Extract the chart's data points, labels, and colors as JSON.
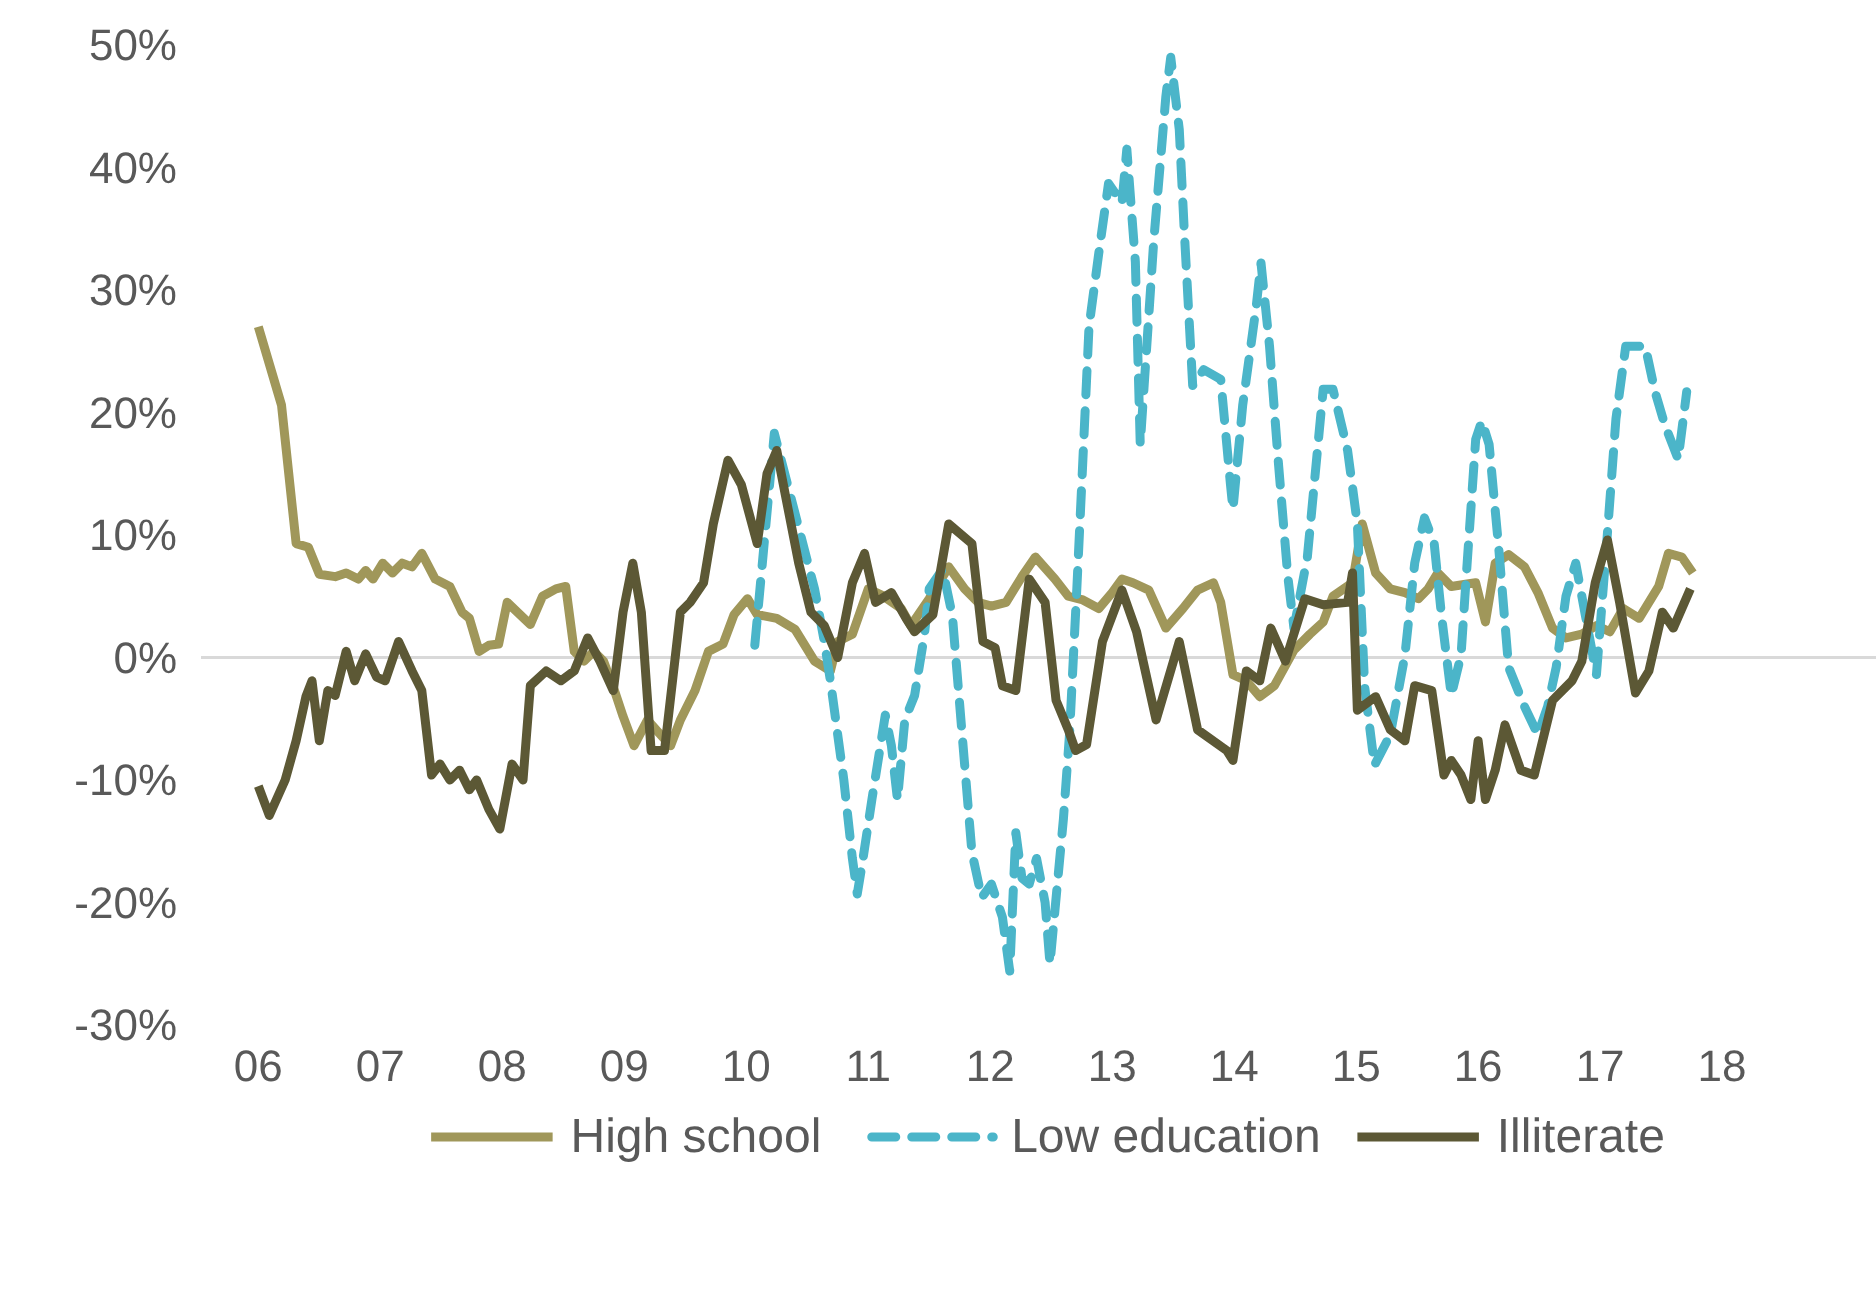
{
  "chart_data": {
    "type": "line",
    "legend": "bottom",
    "grid": false,
    "marker": "none",
    "xlim": [
      2005.53,
      2019.27
    ],
    "xticks": [
      {
        "value": 2006,
        "label": "06"
      },
      {
        "value": 2007,
        "label": "07"
      },
      {
        "value": 2008,
        "label": "08"
      },
      {
        "value": 2009,
        "label": "09"
      },
      {
        "value": 2010,
        "label": "10"
      },
      {
        "value": 2011,
        "label": "11"
      },
      {
        "value": 2012,
        "label": "12"
      },
      {
        "value": 2013,
        "label": "13"
      },
      {
        "value": 2014,
        "label": "14"
      },
      {
        "value": 2015,
        "label": "15"
      },
      {
        "value": 2016,
        "label": "16"
      },
      {
        "value": 2017,
        "label": "17"
      },
      {
        "value": 2018,
        "label": "18"
      }
    ],
    "ylim": [
      -30,
      50
    ],
    "yticks": [
      {
        "value": -30,
        "label": "-30%"
      },
      {
        "value": -20,
        "label": "-20%"
      },
      {
        "value": -10,
        "label": "-10%"
      },
      {
        "value": 0,
        "label": "0%"
      },
      {
        "value": 10,
        "label": "10%"
      },
      {
        "value": 20,
        "label": "20%"
      },
      {
        "value": 30,
        "label": "30%"
      },
      {
        "value": 40,
        "label": "40%"
      },
      {
        "value": 50,
        "label": "50%"
      }
    ],
    "ref_lines": [
      {
        "axis": "y",
        "value": 0,
        "color": "#d9d9d9"
      }
    ],
    "series": [
      {
        "name": "High school",
        "color": "#a0975a",
        "line_style": "solid",
        "x": [
          2006.0,
          2006.19,
          2006.31,
          2006.41,
          2006.5,
          2006.63,
          2006.72,
          2006.82,
          2006.88,
          2006.94,
          2007.02,
          2007.1,
          2007.18,
          2007.26,
          2007.34,
          2007.45,
          2007.57,
          2007.67,
          2007.73,
          2007.81,
          2007.89,
          2007.97,
          2008.04,
          2008.23,
          2008.33,
          2008.44,
          2008.52,
          2008.59,
          2008.67,
          2008.75,
          2008.83,
          2008.92,
          2008.99,
          2009.08,
          2009.19,
          2009.27,
          2009.38,
          2009.46,
          2009.58,
          2009.69,
          2009.81,
          2009.9,
          2010.01,
          2010.09,
          2010.25,
          2010.4,
          2010.56,
          2010.69,
          2010.75,
          2010.87,
          2011.0,
          2011.11,
          2011.27,
          2011.35,
          2011.5,
          2011.66,
          2011.79,
          2011.9,
          2012.01,
          2012.13,
          2012.26,
          2012.37,
          2012.53,
          2012.64,
          2012.76,
          2012.89,
          2013.0,
          2013.08,
          2013.17,
          2013.3,
          2013.44,
          2013.58,
          2013.7,
          2013.83,
          2013.89,
          2013.99,
          2014.1,
          2014.21,
          2014.33,
          2014.49,
          2014.62,
          2014.73,
          2014.81,
          2014.97,
          2015.05,
          2015.16,
          2015.28,
          2015.4,
          2015.51,
          2015.59,
          2015.67,
          2015.78,
          2015.91,
          2015.98,
          2016.06,
          2016.14,
          2016.25,
          2016.38,
          2016.49,
          2016.61,
          2016.72,
          2016.85,
          2016.97,
          2017.08,
          2017.19,
          2017.32,
          2017.48,
          2017.56,
          2017.67,
          2017.76
        ],
        "values": [
          27,
          20.6,
          9.3,
          9,
          6.8,
          6.6,
          6.9,
          6.4,
          7.1,
          6.4,
          7.7,
          6.9,
          7.7,
          7.4,
          8.5,
          6.4,
          5.8,
          3.7,
          3.2,
          0.5,
          1,
          1.1,
          4.5,
          2.7,
          5,
          5.6,
          5.8,
          0.5,
          -0.3,
          0.5,
          -0.3,
          -2.7,
          -4.8,
          -7.2,
          -5.1,
          -6,
          -7.2,
          -5.1,
          -2.7,
          0.5,
          1.1,
          3.5,
          4.8,
          3.5,
          3.2,
          2.3,
          -0.3,
          -1.1,
          1.3,
          1.9,
          5.6,
          5.1,
          4,
          2.6,
          4.8,
          7.4,
          5.6,
          4.5,
          4.2,
          4.5,
          6.6,
          8.2,
          6.4,
          5,
          4.7,
          4,
          5.3,
          6.4,
          6.1,
          5.5,
          2.4,
          4,
          5.5,
          6.1,
          4.5,
          -1.4,
          -1.9,
          -3.2,
          -2.3,
          0.6,
          1.9,
          2.9,
          5,
          6.1,
          10.9,
          6.9,
          5.6,
          5.3,
          4.8,
          5.6,
          6.9,
          5.8,
          6,
          6.1,
          2.9,
          7.7,
          8.4,
          7.4,
          5.3,
          2.4,
          1.6,
          1.9,
          2.6,
          2.1,
          4,
          3.2,
          5.8,
          8.5,
          8.2,
          6.9
        ]
      },
      {
        "name": "Low education",
        "color": "#4bb5c9",
        "line_style": "dashed",
        "x": [
          2010.07,
          2010.23,
          2010.56,
          2010.64,
          2010.69,
          2010.8,
          2010.87,
          2010.91,
          2010.95,
          2011.03,
          2011.14,
          2011.19,
          2011.24,
          2011.3,
          2011.38,
          2011.46,
          2011.5,
          2011.61,
          2011.69,
          2011.77,
          2011.85,
          2011.93,
          2012.01,
          2012.1,
          2012.16,
          2012.21,
          2012.26,
          2012.32,
          2012.38,
          2012.45,
          2012.49,
          2012.6,
          2012.65,
          2012.71,
          2012.76,
          2012.81,
          2012.89,
          2012.97,
          2013.08,
          2013.12,
          2013.19,
          2013.23,
          2013.34,
          2013.44,
          2013.48,
          2013.55,
          2013.59,
          2013.66,
          2013.75,
          2013.89,
          2013.97,
          2013.99,
          2014.07,
          2014.18,
          2014.22,
          2014.29,
          2014.36,
          2014.44,
          2014.49,
          2014.6,
          2014.73,
          2014.81,
          2014.93,
          2015.01,
          2015.07,
          2015.15,
          2015.28,
          2015.4,
          2015.48,
          2015.56,
          2015.64,
          2015.7,
          2015.78,
          2015.86,
          2015.91,
          2015.98,
          2016.03,
          2016.09,
          2016.17,
          2016.25,
          2016.38,
          2016.49,
          2016.57,
          2016.64,
          2016.72,
          2016.8,
          2016.88,
          2016.97,
          2017.05,
          2017.13,
          2017.21,
          2017.29,
          2017.37,
          2017.45,
          2017.53,
          2017.64,
          2017.71
        ],
        "values": [
          1,
          18.3,
          5.6,
          1.3,
          -1.9,
          -10,
          -16.4,
          -19.3,
          -16.9,
          -11.6,
          -4.7,
          -7.2,
          -11.6,
          -5.1,
          -3.1,
          1.8,
          5.6,
          7.2,
          3.4,
          -6.3,
          -15.9,
          -19.6,
          -18.5,
          -21.2,
          -25.6,
          -14.3,
          -18,
          -18.5,
          -16.4,
          -20,
          -25,
          -13.2,
          -6.3,
          5.6,
          16.2,
          27,
          33,
          38.7,
          37.1,
          41.5,
          32.3,
          17.4,
          33.9,
          45.8,
          49,
          43.1,
          35,
          22.2,
          23.5,
          22.7,
          14.1,
          12.1,
          20.6,
          28.6,
          32.2,
          25.4,
          16.2,
          6.6,
          2.4,
          8.2,
          21.9,
          21.9,
          16.9,
          10.9,
          -2.4,
          -8.8,
          -6.3,
          0.2,
          7.7,
          11.4,
          9.3,
          3.4,
          -3.1,
          0.2,
          7.7,
          17.8,
          19.3,
          17.4,
          8.8,
          -0.8,
          -4,
          -6.3,
          -4,
          -0.8,
          5,
          7.7,
          3.4,
          -1.4,
          8.8,
          19.5,
          25.4,
          25.4,
          25.4,
          21.7,
          19,
          16.2,
          21.7
        ]
      },
      {
        "name": "Illiterate",
        "color": "#5c5835",
        "line_style": "solid",
        "x": [
          2006.0,
          2006.09,
          2006.22,
          2006.31,
          2006.39,
          2006.44,
          2006.5,
          2006.57,
          2006.63,
          2006.72,
          2006.79,
          2006.88,
          2006.97,
          2007.04,
          2007.15,
          2007.26,
          2007.34,
          2007.42,
          2007.49,
          2007.57,
          2007.65,
          2007.73,
          2007.79,
          2007.89,
          2007.98,
          2008.08,
          2008.17,
          2008.23,
          2008.36,
          2008.48,
          2008.59,
          2008.7,
          2008.8,
          2008.91,
          2008.99,
          2009.07,
          2009.14,
          2009.22,
          2009.33,
          2009.46,
          2009.54,
          2009.65,
          2009.73,
          2009.85,
          2009.96,
          2010.09,
          2010.17,
          2010.25,
          2010.32,
          2010.43,
          2010.53,
          2010.64,
          2010.75,
          2010.87,
          2010.97,
          2011.06,
          2011.19,
          2011.31,
          2011.38,
          2011.53,
          2011.66,
          2011.85,
          2011.94,
          2012.04,
          2012.1,
          2012.21,
          2012.32,
          2012.45,
          2012.54,
          2012.64,
          2012.7,
          2012.79,
          2012.92,
          2013.08,
          2013.2,
          2013.36,
          2013.55,
          2013.7,
          2013.94,
          2013.99,
          2014.1,
          2014.21,
          2014.3,
          2014.42,
          2014.58,
          2014.73,
          2014.93,
          2014.97,
          2015.01,
          2015.16,
          2015.28,
          2015.4,
          2015.48,
          2015.62,
          2015.72,
          2015.78,
          2015.86,
          2015.94,
          2016.0,
          2016.06,
          2016.14,
          2016.22,
          2016.35,
          2016.46,
          2016.61,
          2016.77,
          2016.85,
          2016.96,
          2017.06,
          2017.16,
          2017.29,
          2017.4,
          2017.51,
          2017.6,
          2017.74
        ],
        "values": [
          -10.5,
          -12.9,
          -10,
          -6.8,
          -3.2,
          -1.9,
          -6.8,
          -2.7,
          -3.1,
          0.5,
          -1.9,
          0.3,
          -1.6,
          -1.9,
          1.3,
          -1.1,
          -2.7,
          -9.6,
          -8.7,
          -10,
          -9.2,
          -10.8,
          -10,
          -12.4,
          -14,
          -8.7,
          -10,
          -2.3,
          -1.1,
          -1.9,
          -1.1,
          1.6,
          -0.3,
          -2.7,
          3.7,
          7.7,
          3.7,
          -7.6,
          -7.6,
          3.7,
          4.5,
          6.1,
          10.9,
          16.1,
          14.1,
          9.3,
          15,
          16.9,
          13.3,
          7.7,
          3.7,
          2.6,
          0,
          6.1,
          8.5,
          4.5,
          5.3,
          3.2,
          2.1,
          3.5,
          10.9,
          9.3,
          1.3,
          0.8,
          -2.3,
          -2.7,
          6.4,
          4.5,
          -3.5,
          -5.9,
          -7.6,
          -7.1,
          1.3,
          5.5,
          2.1,
          -5.1,
          1.3,
          -5.9,
          -7.6,
          -8.4,
          -1.1,
          -1.9,
          2.4,
          -0.3,
          4.8,
          4.3,
          4.5,
          6.9,
          -4.3,
          -3.2,
          -5.9,
          -6.8,
          -2.3,
          -2.7,
          -9.6,
          -8.4,
          -9.6,
          -11.6,
          -6.8,
          -11.6,
          -9.2,
          -5.5,
          -9.2,
          -9.6,
          -3.5,
          -1.9,
          -0.3,
          6.1,
          9.6,
          4.5,
          -2.9,
          -1.1,
          3.7,
          2.4,
          5.6
        ]
      }
    ]
  }
}
